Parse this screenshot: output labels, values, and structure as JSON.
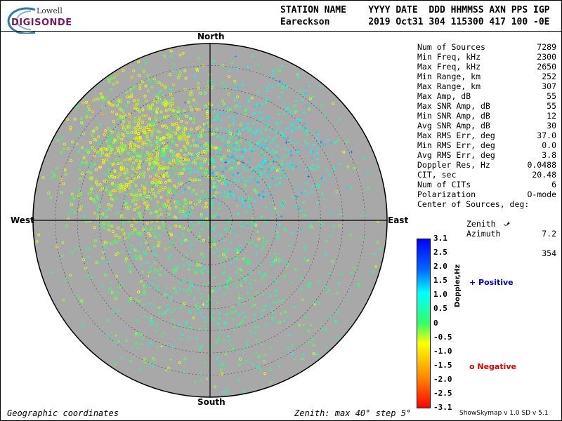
{
  "logo": {
    "line1": "Lowell",
    "line2": "DIGISONDE"
  },
  "header": {
    "line1": "STATION NAME    YYYY DATE  DDD HHMMSS AXN PPS IGP",
    "line2": "Eareckson       2019 Oct31 304 115300 417 100 -0E"
  },
  "compass": {
    "north": "North",
    "south": "South",
    "east": "East",
    "west": "West"
  },
  "stats": [
    {
      "label": "Num of Sources",
      "value": "7289"
    },
    {
      "label": "Min Freq, kHz",
      "value": "2300"
    },
    {
      "label": "Max Freq, kHz",
      "value": "2650"
    },
    {
      "label": "Min Range, km",
      "value": "252"
    },
    {
      "label": "Max Range, km",
      "value": "307"
    },
    {
      "label": "Max Amp, dB",
      "value": "55"
    },
    {
      "label": "Max SNR Amp, dB",
      "value": "55"
    },
    {
      "label": "Min SNR Amp, dB",
      "value": "12"
    },
    {
      "label": "Avg SNR Amp, dB",
      "value": "30"
    },
    {
      "label": "Max RMS Err, deg",
      "value": "37.0"
    },
    {
      "label": "Min RMS Err, deg",
      "value": "0.0"
    },
    {
      "label": "Avg RMS Err, deg",
      "value": "3.8"
    },
    {
      "label": "Doppler Res, Hz",
      "value": "0.0488"
    },
    {
      "label": "CIT, sec",
      "value": "20.48"
    },
    {
      "label": "Num of CITs",
      "value": "6"
    },
    {
      "label": "Polarization",
      "value": "O-mode"
    }
  ],
  "center": {
    "title": "Center of Sources, deg:",
    "zenith_label": "Zenith",
    "zenith_value": "7.2",
    "azimuth_label": "Azimuth",
    "azimuth_value": "354"
  },
  "colorbar": {
    "title": "Doppler,Hz",
    "ticks": [
      "3.1",
      "2.5",
      "2.0",
      "1.5",
      "1.0",
      "0.5",
      "0",
      "-0.5",
      "-1.0",
      "-1.5",
      "-2.0",
      "-2.5",
      "-3.1"
    ]
  },
  "legend": {
    "positive": "+ Positive",
    "negative": "o Negative",
    "positive_color": "#0000cc",
    "negative_color": "#dd0000"
  },
  "footer": {
    "left": "Geographic coordinates",
    "center": "Zenith: max 40°  step 5°",
    "right": "ShowSkymap v 1.0   SD v 5.1"
  },
  "chart_data": {
    "type": "scatter",
    "projection": "polar-skymap",
    "zenith_max_deg": 40,
    "zenith_step_deg": 5,
    "plot_background": "#a8a8a8",
    "doppler_range_hz": [
      -3.1,
      3.1
    ],
    "clusters": [
      {
        "marker": "o",
        "azimuth_deg": 320,
        "zenith_deg": 22,
        "spread_deg": 9,
        "weight": 0.32,
        "doppler_hz": -0.6
      },
      {
        "marker": "o",
        "azimuth_deg": 290,
        "zenith_deg": 18,
        "spread_deg": 10,
        "weight": 0.14,
        "doppler_hz": -0.3
      },
      {
        "marker": "+",
        "azimuth_deg": 35,
        "zenith_deg": 18,
        "spread_deg": 9,
        "weight": 0.22,
        "doppler_hz": 1.0
      },
      {
        "marker": "+",
        "azimuth_deg": 175,
        "zenith_deg": 15,
        "spread_deg": 12,
        "weight": 0.22,
        "doppler_hz": 0.3
      },
      {
        "marker": "o",
        "azimuth_deg": 0,
        "zenith_deg": 0,
        "spread_deg": 40,
        "weight": 0.1,
        "doppler_hz": -0.1
      }
    ]
  }
}
